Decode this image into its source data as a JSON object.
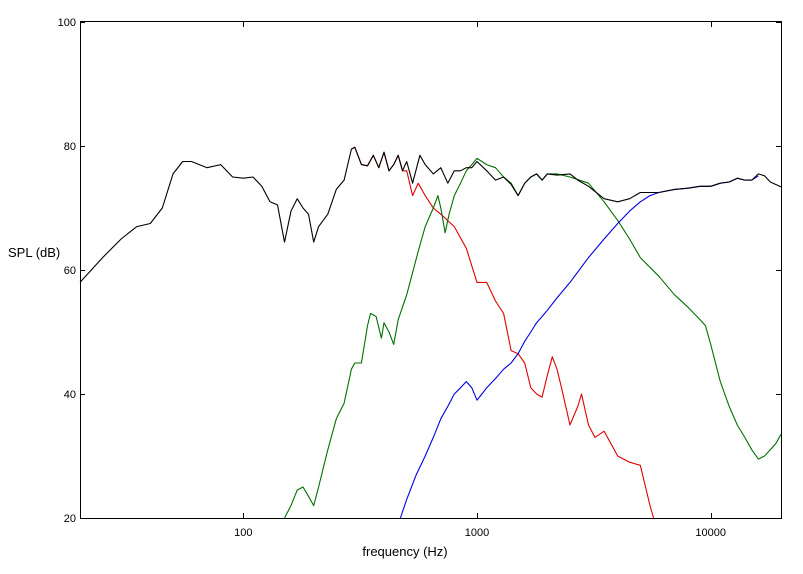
{
  "chart_data": {
    "type": "line",
    "title": "",
    "xlabel": "frequency (Hz)",
    "ylabel": "SPL (dB)",
    "x_scale": "log",
    "xlim": [
      20,
      20000
    ],
    "ylim": [
      20,
      100
    ],
    "grid": false,
    "x_ticks": [
      {
        "value": 100,
        "label": "100"
      },
      {
        "value": 1000,
        "label": "1000"
      },
      {
        "value": 10000,
        "label": "10000"
      }
    ],
    "y_ticks": [
      {
        "value": 20,
        "label": "20"
      },
      {
        "value": 40,
        "label": "40"
      },
      {
        "value": 60,
        "label": "60"
      },
      {
        "value": 80,
        "label": "80"
      },
      {
        "value": 100,
        "label": "100"
      }
    ],
    "series": [
      {
        "color": "#000000",
        "points": [
          [
            20,
            58
          ],
          [
            25,
            62
          ],
          [
            30,
            65
          ],
          [
            35,
            67
          ],
          [
            40,
            67.5
          ],
          [
            45,
            70
          ],
          [
            50,
            75.5
          ],
          [
            55,
            77.5
          ],
          [
            60,
            77.5
          ],
          [
            70,
            76.5
          ],
          [
            80,
            77
          ],
          [
            90,
            75
          ],
          [
            100,
            74.8
          ],
          [
            110,
            75
          ],
          [
            120,
            73.5
          ],
          [
            130,
            71
          ],
          [
            140,
            70.5
          ],
          [
            150,
            64.5
          ],
          [
            160,
            69.5
          ],
          [
            170,
            71.5
          ],
          [
            180,
            70
          ],
          [
            190,
            69
          ],
          [
            200,
            64.5
          ],
          [
            210,
            67
          ],
          [
            230,
            69
          ],
          [
            250,
            73
          ],
          [
            270,
            74.5
          ],
          [
            290,
            79.5
          ],
          [
            300,
            79.8
          ],
          [
            320,
            77
          ],
          [
            340,
            76.8
          ],
          [
            360,
            78.5
          ],
          [
            380,
            76.5
          ],
          [
            400,
            79
          ],
          [
            420,
            76
          ],
          [
            440,
            77
          ],
          [
            460,
            78.5
          ],
          [
            480,
            76
          ],
          [
            500,
            77.5
          ],
          [
            530,
            74
          ],
          [
            570,
            78.5
          ],
          [
            600,
            77
          ],
          [
            650,
            75.5
          ],
          [
            700,
            76.5
          ],
          [
            750,
            74
          ],
          [
            800,
            76
          ],
          [
            850,
            76
          ],
          [
            900,
            76.5
          ],
          [
            950,
            76.5
          ],
          [
            1000,
            77.5
          ],
          [
            1100,
            76
          ],
          [
            1200,
            74.5
          ],
          [
            1300,
            75
          ],
          [
            1400,
            73.8
          ],
          [
            1500,
            72
          ],
          [
            1600,
            74
          ],
          [
            1700,
            75
          ],
          [
            1800,
            75.5
          ],
          [
            1900,
            74.5
          ],
          [
            2000,
            75.5
          ],
          [
            2200,
            75.3
          ],
          [
            2500,
            75.5
          ],
          [
            2700,
            74.5
          ],
          [
            3000,
            73.5
          ],
          [
            3500,
            71.5
          ],
          [
            4000,
            71
          ],
          [
            4500,
            71.5
          ],
          [
            5000,
            72.5
          ],
          [
            6000,
            72.5
          ],
          [
            7000,
            73
          ],
          [
            8000,
            73.2
          ],
          [
            9000,
            73.5
          ],
          [
            10000,
            73.5
          ],
          [
            11000,
            74
          ],
          [
            12000,
            74.2
          ],
          [
            13000,
            74.8
          ],
          [
            14000,
            74.5
          ],
          [
            15000,
            74.5
          ],
          [
            16000,
            75.5
          ],
          [
            17000,
            75.2
          ],
          [
            18000,
            74.2
          ],
          [
            20000,
            73.4
          ]
        ]
      },
      {
        "color": "#e00000",
        "points": [
          [
            290,
            79.5
          ],
          [
            300,
            79.8
          ],
          [
            320,
            77
          ],
          [
            340,
            76.8
          ],
          [
            360,
            78.5
          ],
          [
            380,
            76.5
          ],
          [
            400,
            79
          ],
          [
            420,
            76
          ],
          [
            440,
            77
          ],
          [
            460,
            78.5
          ],
          [
            480,
            76
          ],
          [
            500,
            76
          ],
          [
            530,
            72
          ],
          [
            560,
            74
          ],
          [
            600,
            72
          ],
          [
            650,
            70
          ],
          [
            700,
            69
          ],
          [
            800,
            67
          ],
          [
            900,
            63.5
          ],
          [
            1000,
            58
          ],
          [
            1100,
            58
          ],
          [
            1200,
            55
          ],
          [
            1300,
            53
          ],
          [
            1400,
            47
          ],
          [
            1500,
            46.5
          ],
          [
            1600,
            45
          ],
          [
            1700,
            41
          ],
          [
            1800,
            40
          ],
          [
            1900,
            39.5
          ],
          [
            2000,
            43
          ],
          [
            2100,
            46
          ],
          [
            2200,
            44
          ],
          [
            2300,
            41
          ],
          [
            2500,
            35
          ],
          [
            2700,
            38
          ],
          [
            2800,
            40
          ],
          [
            3000,
            35
          ],
          [
            3200,
            33
          ],
          [
            3500,
            34
          ],
          [
            4000,
            30
          ],
          [
            4500,
            29
          ],
          [
            5000,
            28.5
          ],
          [
            5500,
            22
          ],
          [
            5700,
            20
          ]
        ]
      },
      {
        "color": "#007000",
        "points": [
          [
            150,
            20
          ],
          [
            160,
            22
          ],
          [
            170,
            24.5
          ],
          [
            180,
            25
          ],
          [
            190,
            23.5
          ],
          [
            200,
            22
          ],
          [
            210,
            25
          ],
          [
            230,
            31
          ],
          [
            250,
            36
          ],
          [
            270,
            38.5
          ],
          [
            290,
            44
          ],
          [
            300,
            45
          ],
          [
            320,
            45
          ],
          [
            340,
            51
          ],
          [
            350,
            53
          ],
          [
            370,
            52.5
          ],
          [
            390,
            49
          ],
          [
            400,
            51.5
          ],
          [
            420,
            50
          ],
          [
            440,
            48
          ],
          [
            460,
            52
          ],
          [
            500,
            56
          ],
          [
            560,
            63
          ],
          [
            600,
            67
          ],
          [
            650,
            70
          ],
          [
            680,
            72
          ],
          [
            700,
            70
          ],
          [
            730,
            66
          ],
          [
            760,
            69
          ],
          [
            800,
            72
          ],
          [
            850,
            74
          ],
          [
            900,
            76
          ],
          [
            950,
            77
          ],
          [
            1000,
            78
          ],
          [
            1100,
            77
          ],
          [
            1200,
            76.5
          ],
          [
            1300,
            75
          ],
          [
            1400,
            74
          ],
          [
            1500,
            72
          ],
          [
            1600,
            74
          ],
          [
            1700,
            75
          ],
          [
            1800,
            75.5
          ],
          [
            1900,
            74.5
          ],
          [
            2000,
            75.5
          ],
          [
            2200,
            75.5
          ],
          [
            2500,
            75
          ],
          [
            3000,
            74
          ],
          [
            3500,
            71
          ],
          [
            4000,
            68
          ],
          [
            4500,
            65
          ],
          [
            5000,
            62
          ],
          [
            6000,
            59
          ],
          [
            7000,
            56
          ],
          [
            8000,
            54
          ],
          [
            9000,
            52
          ],
          [
            9500,
            51
          ],
          [
            10000,
            48
          ],
          [
            11000,
            42
          ],
          [
            12000,
            38
          ],
          [
            13000,
            35
          ],
          [
            14000,
            33
          ],
          [
            15000,
            31
          ],
          [
            16000,
            29.5
          ],
          [
            17000,
            30
          ],
          [
            18000,
            31
          ],
          [
            19000,
            32
          ],
          [
            20000,
            33.5
          ]
        ]
      },
      {
        "color": "#0000e0",
        "points": [
          [
            470,
            20
          ],
          [
            500,
            23
          ],
          [
            550,
            27
          ],
          [
            600,
            30
          ],
          [
            650,
            33
          ],
          [
            700,
            36
          ],
          [
            750,
            38
          ],
          [
            800,
            40
          ],
          [
            850,
            41
          ],
          [
            900,
            42
          ],
          [
            950,
            41
          ],
          [
            1000,
            39
          ],
          [
            1050,
            40
          ],
          [
            1100,
            41
          ],
          [
            1200,
            42.5
          ],
          [
            1300,
            44
          ],
          [
            1400,
            45
          ],
          [
            1500,
            46.5
          ],
          [
            1600,
            48.5
          ],
          [
            1700,
            50
          ],
          [
            1800,
            51.5
          ],
          [
            1900,
            52.5
          ],
          [
            2000,
            53.5
          ],
          [
            2200,
            55.5
          ],
          [
            2500,
            58
          ],
          [
            2800,
            60.5
          ],
          [
            3000,
            62
          ],
          [
            3500,
            65
          ],
          [
            4000,
            67.5
          ],
          [
            4500,
            69.5
          ],
          [
            5000,
            71
          ],
          [
            5500,
            72
          ],
          [
            6000,
            72.5
          ],
          [
            7000,
            73
          ],
          [
            8000,
            73.2
          ],
          [
            9000,
            73.5
          ],
          [
            10000,
            73.5
          ],
          [
            11000,
            74
          ],
          [
            12000,
            74.2
          ],
          [
            13000,
            74.8
          ],
          [
            14000,
            74.5
          ],
          [
            15000,
            74.5
          ],
          [
            16000,
            75.2
          ]
        ]
      }
    ]
  }
}
